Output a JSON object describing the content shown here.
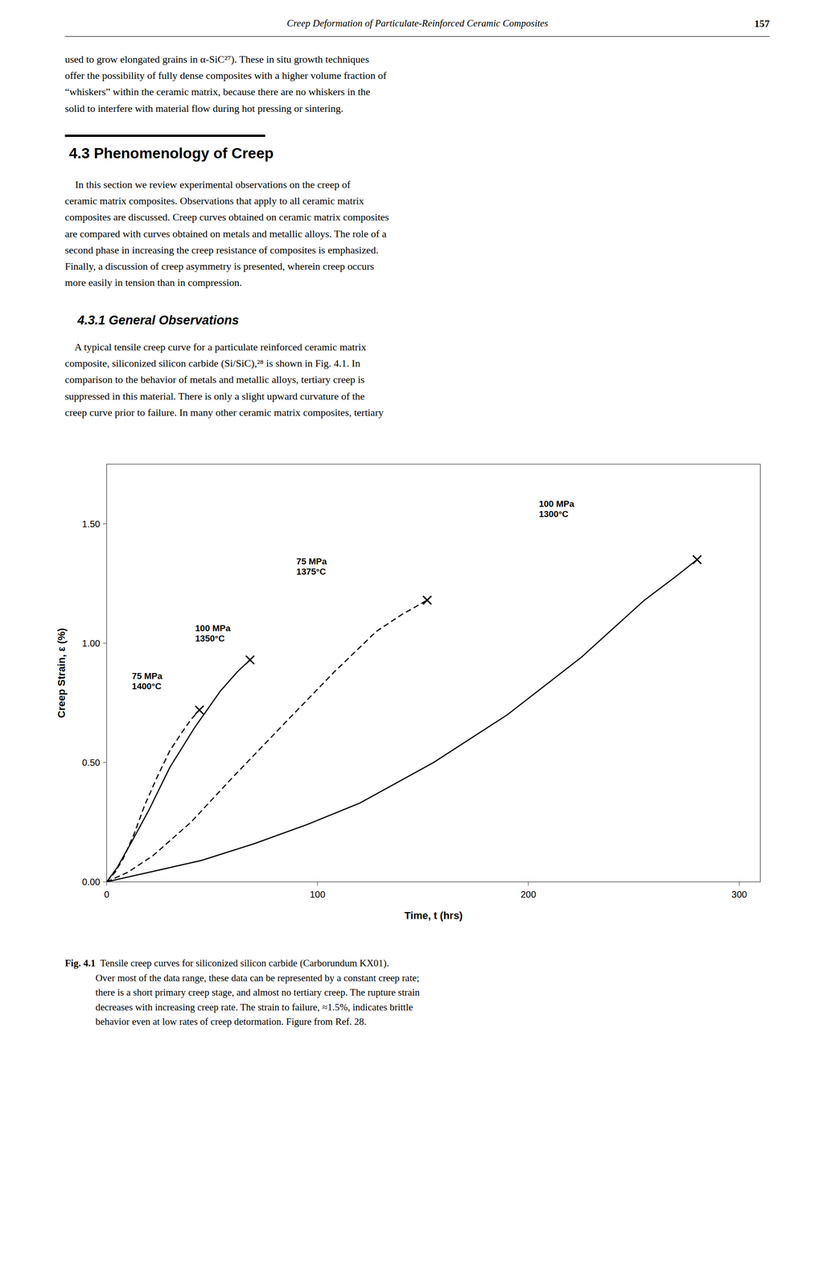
{
  "page": {
    "header_italic": "Creep Deformation of Particulate-Reinforced Ceramic Composites",
    "header_bold": "157",
    "para0": "used to grow elongated grains in α-SiC²⁷). These in situ growth techniques\noffer the possibility of fully dense composites with a higher volume fraction of\n“whiskers” within the ceramic matrix, because there are no whiskers in the\nsolid to interfere with material flow during hot pressing or sintering.",
    "section_heading": "4.3 Phenomenology of Creep",
    "para1": "    In this section we review experimental observations on the creep of\nceramic matrix composites. Observations that apply to all ceramic matrix\ncomposites are discussed. Creep curves obtained on ceramic matrix composites\nare compared with curves obtained on metals and metallic alloys. The role of a\nsecond phase in increasing the creep resistance of composites is emphasized.\nFinally, a discussion of creep asymmetry is presented, wherein creep occurs\nmore easily in tension than in compression.",
    "subsection_heading": "4.3.1 General Observations",
    "para2": "    A typical tensile creep curve for a particulate reinforced ceramic matrix\ncomposite, siliconized silicon carbide (Si/SiC),²⁸ is shown in Fig. 4.1. In\ncomparison to the behavior of metals and metallic alloys, tertiary creep is\nsuppressed in this material. There is only a slight upward curvature of the\ncreep curve prior to failure. In many other ceramic matrix composites, tertiary",
    "caption_bold": "Fig. 4.1",
    "caption_rest": "  Tensile creep curves for siliconized silicon carbide (Carborundum KX01).\nOver most of the data range, these data can be represented by a constant creep rate;\nthere is a short primary creep stage, and almost no tertiary creep. The rupture strain\ndecreases with increasing creep rate. The strain to failure, ≈1.5%, indicates brittle\nbehavior even at low rates of creep detormation. Figure from Ref. 28."
  },
  "chart_data": {
    "type": "line",
    "x_label": "Time, t (hrs)",
    "y_label": "Creep Strain, ε (%)",
    "xlim": [
      0,
      310
    ],
    "ylim": [
      0.0,
      1.75
    ],
    "xticks": [
      0,
      100,
      200,
      300
    ],
    "yticks": [
      {
        "value": 0.0,
        "label": "0.00"
      },
      {
        "value": 0.5,
        "label": "0.50"
      },
      {
        "value": 1.0,
        "label": "1.00"
      },
      {
        "value": 1.5,
        "label": "1.50"
      }
    ],
    "grid": false,
    "series": [
      {
        "line_style": "dashed",
        "color": "black",
        "x": [
          0,
          4,
          8,
          13,
          18,
          24,
          30,
          36,
          40,
          44
        ],
        "values": [
          0,
          0.04,
          0.1,
          0.2,
          0.32,
          0.44,
          0.55,
          0.63,
          0.68,
          0.72
        ],
        "rupture": {
          "x": 44,
          "y": 0.72,
          "marker": "x"
        }
      },
      {
        "line_style": "solid",
        "color": "black",
        "x": [
          0,
          5,
          12,
          20,
          30,
          42,
          54,
          62,
          68
        ],
        "values": [
          0,
          0.06,
          0.17,
          0.3,
          0.48,
          0.65,
          0.8,
          0.88,
          0.93
        ],
        "rupture": {
          "x": 68,
          "y": 0.93,
          "marker": "x"
        }
      },
      {
        "line_style": "dashed",
        "color": "black",
        "x": [
          0,
          10,
          22,
          40,
          60,
          85,
          108,
          128,
          140,
          152
        ],
        "values": [
          0,
          0.04,
          0.11,
          0.25,
          0.44,
          0.67,
          0.88,
          1.05,
          1.12,
          1.18
        ],
        "rupture": {
          "x": 152,
          "y": 1.18,
          "marker": "x"
        }
      },
      {
        "line_style": "solid",
        "color": "black",
        "x": [
          0,
          20,
          45,
          70,
          95,
          120,
          155,
          190,
          225,
          255,
          270,
          280
        ],
        "values": [
          0,
          0.04,
          0.09,
          0.16,
          0.24,
          0.33,
          0.5,
          0.7,
          0.94,
          1.18,
          1.28,
          1.35
        ],
        "rupture": {
          "x": 280,
          "y": 1.35,
          "marker": "x"
        }
      }
    ],
    "annotations": [
      {
        "text": "75 MPa\n1400°C",
        "x": 12,
        "y": 0.8
      },
      {
        "text": "100 MPa\n1350°C",
        "x": 42,
        "y": 1.0
      },
      {
        "text": "75 MPa\n1375°C",
        "x": 90,
        "y": 1.28
      },
      {
        "text": "100 MPa\n1300°C",
        "x": 205,
        "y": 1.52
      }
    ]
  }
}
